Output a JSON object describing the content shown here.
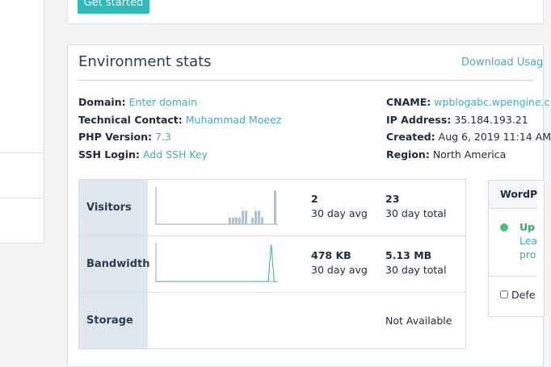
{
  "top_card": {
    "button_label": "Get started"
  },
  "environment": {
    "title": "Environment stats",
    "download_link": "Download Usag",
    "left_info": [
      {
        "key": "Domain:",
        "value": "Enter domain",
        "link": true
      },
      {
        "key": "Technical Contact:",
        "value": "Muhammad Moeez",
        "link": true
      },
      {
        "key": "PHP Version:",
        "value": "7.3",
        "link": true
      },
      {
        "key": "SSH Login:",
        "value": "Add SSH Key",
        "link": true
      }
    ],
    "right_info": [
      {
        "key": "CNAME:",
        "value": "wpblogabc.wpengine.c",
        "link": true
      },
      {
        "key": "IP Address:",
        "value": "35.184.193.21",
        "link": false
      },
      {
        "key": "Created:",
        "value": "Aug 6, 2019 11:14 AM",
        "link": false
      },
      {
        "key": "Region:",
        "value": "North America",
        "link": false
      }
    ]
  },
  "stats": {
    "rows": [
      {
        "label": "Visitors",
        "avg_value": "2",
        "avg_label": "30 day avg",
        "total_value": "23",
        "total_label": "30 day total"
      },
      {
        "label": "Bandwidth",
        "avg_value": "478 KB",
        "avg_label": "30 day avg",
        "total_value": "5.13 MB",
        "total_label": "30 day total"
      },
      {
        "label": "Storage",
        "status": "Not Available"
      }
    ],
    "visitors_sparkline": [
      0,
      0,
      0,
      0,
      0,
      0,
      0,
      0,
      0,
      0,
      0,
      0,
      0,
      0,
      0,
      0,
      0,
      0,
      0,
      0,
      0,
      0,
      1,
      1,
      1,
      1,
      2,
      2,
      0,
      1,
      2,
      2,
      1,
      0,
      0,
      0,
      5
    ],
    "bandwidth_sparkline": [
      0,
      0,
      0,
      0,
      0,
      0,
      0,
      0,
      0,
      0,
      0,
      0,
      0,
      0,
      0,
      0,
      0,
      0,
      0,
      0,
      0,
      0,
      0,
      0,
      0,
      0,
      0,
      0,
      0,
      0,
      0,
      0,
      0,
      0,
      0,
      0,
      0,
      0,
      0,
      1,
      0,
      0
    ],
    "series_color": "#a9c4dc",
    "line_color": "#43b07a"
  },
  "wordpress_card": {
    "title": "WordP",
    "status": "Up",
    "link_1": "Lea",
    "link_2": "pro",
    "checkbox_label": "Defe"
  },
  "colors": {
    "accent": "#32b8b8",
    "link": "#4aa7b8",
    "success": "#4bbf7a"
  }
}
